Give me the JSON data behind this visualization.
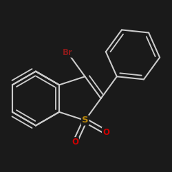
{
  "bg_color": "#1a1a1a",
  "bond_color": "#cccccc",
  "br_color": "#8b1a1a",
  "s_color": "#b8860b",
  "o_color": "#cc0000",
  "bond_width": 1.5,
  "font_size_atom": 8.5,
  "xlim": [
    -2.8,
    2.8
  ],
  "ylim": [
    -2.8,
    2.8
  ]
}
